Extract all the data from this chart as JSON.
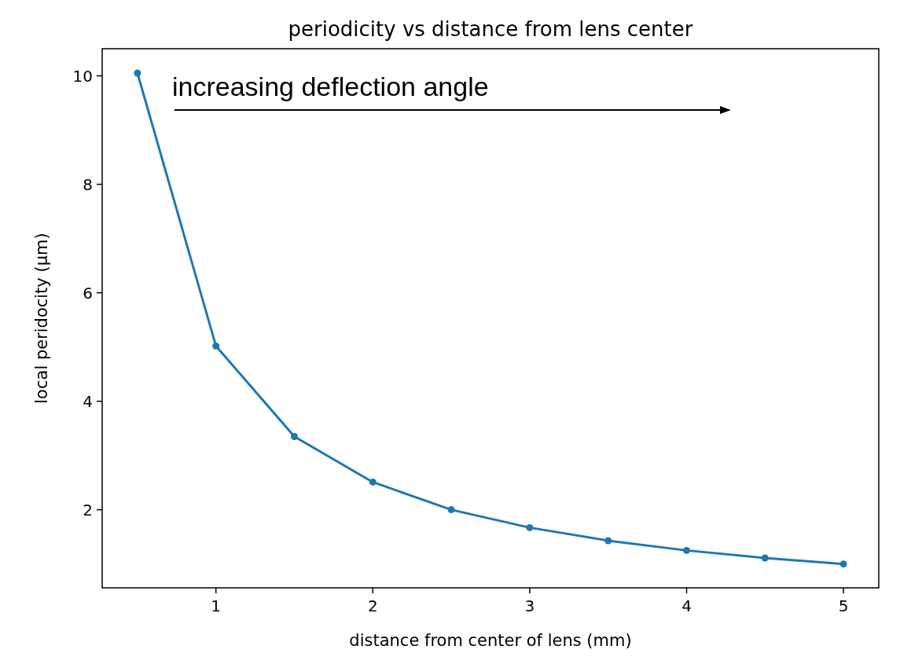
{
  "chart_data": {
    "type": "line",
    "title": "periodicity vs distance from lens center",
    "xlabel": "distance from center of lens (mm)",
    "ylabel": "local peridocity (μm)",
    "x": [
      0.5,
      1,
      1.5,
      2,
      2.5,
      3,
      3.5,
      4,
      4.5,
      5
    ],
    "series": [
      {
        "color": "#1f77b4",
        "values": [
          10.05,
          5.02,
          3.35,
          2.51,
          2.0,
          1.67,
          1.43,
          1.25,
          1.11,
          1.0
        ]
      }
    ],
    "xlim": [
      0.275,
      5.225
    ],
    "xticks": [
      1,
      2,
      3,
      4,
      5
    ],
    "ylim": [
      0.56,
      10.5
    ],
    "yticks": [
      2,
      4,
      6,
      8,
      10
    ],
    "marker": "circle",
    "line_style": "solid",
    "grid": false,
    "annotations": [
      "increasing deflection angle"
    ]
  }
}
